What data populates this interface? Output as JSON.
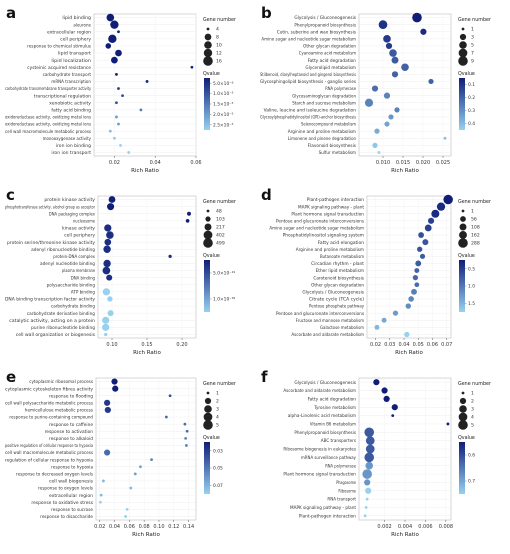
{
  "chart_data": [
    {
      "panel": "a",
      "type": "scatter",
      "xlabel": "Rich Ratio",
      "xlim": [
        0.01,
        0.06
      ],
      "xticks": [
        0.02,
        0.04,
        0.06
      ],
      "categories": [
        "lipid binding",
        "aleurone",
        "extracellular region",
        "cell periphery",
        "response to chemical stimulus",
        "lipid transport",
        "lipid localization",
        "cysteinic acquired resistance",
        "carbohydrate transport",
        "mRNA transcription",
        "carbohydrate transmembrane transporter activity",
        "transcriptional regulation",
        "xenobiotic activity",
        "fatty acid binding",
        "oxidoreductase activity, oxidizing metal ions",
        "oxidoreductase activity, oxidizing metal ions",
        "cell wall macromolecule metabolic process",
        "monooxygenase activity",
        "iron ion binding",
        "iron ion transport"
      ],
      "x": [
        0.018,
        0.02,
        0.022,
        0.019,
        0.017,
        0.022,
        0.02,
        0.058,
        0.021,
        0.036,
        0.022,
        0.024,
        0.021,
        0.033,
        0.021,
        0.022,
        0.018,
        0.02,
        0.023,
        0.027
      ],
      "gene_number": [
        10,
        12,
        4,
        12,
        6,
        8,
        8,
        4,
        4,
        4,
        4,
        4,
        4,
        4,
        4,
        4,
        4,
        4,
        4,
        4
      ],
      "qvalue": [
        2e-06,
        2e-06,
        2e-06,
        2e-06,
        2e-06,
        2e-06,
        2e-06,
        3e-06,
        2e-06,
        3e-06,
        6e-06,
        8e-06,
        8e-06,
        1.4e-05,
        1.8e-05,
        1.8e-05,
        2.2e-05,
        2.4e-05,
        2.5e-05,
        2.5e-05
      ],
      "legend": {
        "size_title": "Gene number",
        "size_values": [
          4,
          8,
          10,
          12,
          16
        ],
        "color_title": "Qvalue",
        "color_labels": [
          "5.0×10⁻⁶",
          "1.0×10⁻⁵",
          "1.5×10⁻⁵",
          "2.0×10⁻⁵",
          "2.5×10⁻⁵"
        ]
      }
    },
    {
      "panel": "b",
      "type": "scatter",
      "xlabel": "Rich Ratio",
      "xlim": [
        0.004,
        0.027
      ],
      "xticks": [
        0.01,
        0.015,
        0.02,
        0.025
      ],
      "categories": [
        "Glycolysis / Gluconeogenesis",
        "Phenylpropanoid biosynthesis",
        "Cutin, suberine and wax biosynthesis",
        "Amino sugar and nucleotide sugar metabolism",
        "Other glycan degradation",
        "Cyanoamino acid metabolism",
        "Fatty acid degradation",
        "Glycerolipid metabolism",
        "Stilbenoid, diarylheptanoid and gingerol biosynthesis",
        "Glycosphingolipid biosynthesis - ganglio series",
        "RNA polymerase",
        "Glycosaminoglycan degradation",
        "Starch and sucrose metabolism",
        "Valine, leucine and isoleucine degradation",
        "Glycosylphosphatidylinositol (GPI)-anchor biosynthesis",
        "Selenocompound metabolism",
        "Arginine and proline metabolism",
        "Limonene and pinene degradation",
        "Flavonoid biosynthesis",
        "Sulfur metabolism"
      ],
      "x": [
        0.0185,
        0.01,
        0.0201,
        0.011,
        0.0115,
        0.0125,
        0.013,
        0.0155,
        0.013,
        0.022,
        0.008,
        0.011,
        0.0065,
        0.0135,
        0.012,
        0.011,
        0.0085,
        0.0255,
        0.008,
        0.009
      ],
      "gene_number": [
        9,
        7,
        3,
        5,
        3,
        5,
        4,
        5,
        3,
        2,
        3,
        3,
        6,
        2,
        2,
        2,
        2,
        1,
        2,
        1
      ],
      "qvalue": [
        0.05,
        0.1,
        0.08,
        0.12,
        0.12,
        0.2,
        0.2,
        0.22,
        0.22,
        0.22,
        0.25,
        0.3,
        0.3,
        0.3,
        0.35,
        0.38,
        0.4,
        0.44,
        0.47,
        0.5
      ],
      "legend": {
        "size_title": "Gene number",
        "size_values": [
          1,
          3,
          5,
          7,
          9
        ],
        "color_title": "Qvalue",
        "color_labels": [
          "0.1",
          "0.2",
          "0.3",
          "0.4"
        ]
      }
    },
    {
      "panel": "c",
      "type": "scatter",
      "xlabel": "Rich Ratio",
      "xlim": [
        0.08,
        0.22
      ],
      "xticks": [
        0.1,
        0.15,
        0.2
      ],
      "categories": [
        "protein kinase activity",
        "phosphotransferase activity, alcohol group as acceptor",
        "DNA packaging complex",
        "nucleosome",
        "kinase activity",
        "cell periphery",
        "protein serine/threonine kinase activity",
        "adenyl ribonucleotide binding",
        "protein-DNA complex",
        "adenyl nucleotide binding",
        "plasma membrane",
        "DNA binding",
        "polysaccharide binding",
        "ATP binding",
        "DNA binding transcription factor activity",
        "carbohydrate binding",
        "carbohydrate derivative binding",
        "catalytic activity, acting on a protein",
        "purine ribonucleotide binding",
        "cell wall organization or biogenesis"
      ],
      "x": [
        0.1,
        0.098,
        0.21,
        0.208,
        0.094,
        0.097,
        0.094,
        0.093,
        0.183,
        0.093,
        0.092,
        0.096,
        0.161,
        0.092,
        0.097,
        0.118,
        0.098,
        0.091,
        0.091,
        0.091
      ],
      "gene_number": [
        200,
        230,
        60,
        55,
        240,
        270,
        190,
        255,
        50,
        255,
        285,
        150,
        40,
        245,
        110,
        45,
        150,
        230,
        245,
        50
      ],
      "qvalue": [
        1e-20,
        1e-20,
        1e-20,
        1e-20,
        1e-19,
        1e-19,
        1e-19,
        1e-19,
        1e-19,
        1e-19,
        1e-19,
        1e-19,
        1e-19,
        1e-18,
        1e-18,
        1e-18,
        1e-18,
        1e-18,
        1e-18,
        1e-18
      ],
      "legend": {
        "size_title": "Gene number",
        "size_values": [
          48,
          103,
          217,
          402,
          499
        ],
        "color_title": "Qvalue",
        "color_labels": [
          "5.0×10⁻¹⁹",
          "1.0×10⁻¹⁸"
        ]
      }
    },
    {
      "panel": "d",
      "type": "scatter",
      "xlabel": "Rich Ratio",
      "xlim": [
        0.014,
        0.073
      ],
      "xticks": [
        0.02,
        0.03,
        0.04,
        0.05,
        0.06,
        0.07
      ],
      "categories": [
        "Plant-pathogen interaction",
        "MAPK signaling pathway - plant",
        "Plant hormone signal transduction",
        "Pentose and glucuronate interconversions",
        "Amino sugar and nucleotide sugar metabolism",
        "Phosphatidylinositol signaling system",
        "Fatty acid elongation",
        "Arginine and proline metabolism",
        "Butanoate metabolism",
        "Circadian rhythm - plant",
        "Ether lipid metabolism",
        "Carotenoid biosynthesis",
        "Other glycan degradation",
        "Glycolysis / Gluconeogenesis",
        "Citrate cycle (TCA cycle)",
        "Pentose phosphate pathway",
        "Pentose and glucuronate interconversions",
        "Fructose and mannose metabolism",
        "Galactose metabolism",
        "Ascorbate and aldarate metabolism"
      ],
      "x": [
        0.071,
        0.066,
        0.062,
        0.059,
        0.057,
        0.052,
        0.055,
        0.051,
        0.053,
        0.05,
        0.049,
        0.048,
        0.049,
        0.047,
        0.045,
        0.043,
        0.034,
        0.026,
        0.021,
        0.042
      ],
      "gene_number": [
        280,
        190,
        170,
        70,
        100,
        55,
        65,
        40,
        35,
        60,
        30,
        40,
        25,
        60,
        50,
        45,
        40,
        30,
        28,
        40
      ],
      "qvalue": [
        0.2,
        0.3,
        0.3,
        0.45,
        0.45,
        0.55,
        0.6,
        0.6,
        0.65,
        0.65,
        0.7,
        0.72,
        0.75,
        0.9,
        0.95,
        1.0,
        1.1,
        1.2,
        1.3,
        1.5
      ],
      "legend": {
        "size_title": "Gene number",
        "size_values": [
          1,
          56,
          108,
          162,
          288
        ],
        "color_title": "Qvalue",
        "color_labels": [
          "0.5",
          "1.0",
          "1.5"
        ]
      }
    },
    {
      "panel": "e",
      "type": "scatter",
      "xlabel": "Rich Ratio",
      "xlim": [
        0.015,
        0.15
      ],
      "xticks": [
        0.02,
        0.04,
        0.06,
        0.08,
        0.1,
        0.12,
        0.14
      ],
      "categories": [
        "cytoplasmic ribosomal process",
        "cytoplasmic cytoskeleton fibres activity",
        "response to flooding",
        "cell wall polysaccharide metabolic process",
        "hemicellulose metabolic process",
        "response to purine-containing compound",
        "response to caffeine",
        "response to activation",
        "response to alkaloid",
        "positive regulation of cellular response to hypoxia",
        "cell wall macromolecule metabolic process",
        "regulation of cellular response to hypoxia",
        "response to hypoxia",
        "response to decreased oxygen levels",
        "cell wall biogenesis",
        "response to oxygen levels",
        "extracellular region",
        "response to oxidative stress",
        "response to sucrose",
        "response to disaccharide"
      ],
      "x": [
        0.04,
        0.041,
        0.115,
        0.03,
        0.031,
        0.11,
        0.135,
        0.138,
        0.136,
        0.137,
        0.03,
        0.09,
        0.075,
        0.068,
        0.025,
        0.062,
        0.022,
        0.021,
        0.057,
        0.055
      ],
      "gene_number": [
        2,
        2,
        1,
        2,
        2,
        1,
        1,
        1,
        1,
        1,
        2,
        1,
        1,
        1,
        1,
        1,
        1,
        1,
        1,
        1
      ],
      "qvalue": [
        0.02,
        0.02,
        0.04,
        0.03,
        0.03,
        0.05,
        0.05,
        0.05,
        0.06,
        0.06,
        0.05,
        0.06,
        0.07,
        0.07,
        0.08,
        0.08,
        0.08,
        0.09,
        0.09,
        0.09
      ],
      "legend": {
        "size_title": "Gene number",
        "size_values": [
          1,
          2,
          3,
          4,
          5
        ],
        "color_title": "Qvalue",
        "color_labels": [
          "0.03",
          "0.05",
          "0.07"
        ]
      }
    },
    {
      "panel": "f",
      "type": "scatter",
      "xlabel": "Rich Ratio",
      "xlim": [
        -0.0005,
        0.0085
      ],
      "xticks": [
        0.002,
        0.004,
        0.006,
        0.008
      ],
      "categories": [
        "Glycolysis / Gluconeogenesis",
        "Ascorbate and aldarate metabolism",
        "Fatty acid degradation",
        "Tyrosine metabolism",
        "alpha-Linolenic acid metabolism",
        "Vitamin B6 metabolism",
        "Phenylpropanoid biosynthesis",
        "ABC transporters",
        "Ribosome biogenesis in eukaryotes",
        "mRNA surveillance pathway",
        "RNA polymerase",
        "Plant hormone signal transduction",
        "Phagosome",
        "Ribosome",
        "RNA transport",
        "MAPK signaling pathway - plant",
        "Plant-pathogen interaction"
      ],
      "x": [
        0.0012,
        0.002,
        0.0022,
        0.003,
        0.0028,
        0.0082,
        0.0005,
        0.0006,
        0.0006,
        0.0005,
        0.0005,
        0.0003,
        0.0003,
        0.0004,
        0.0003,
        0.0002,
        0.0001
      ],
      "gene_number": [
        2,
        2,
        2,
        2,
        1,
        1,
        5,
        4,
        4,
        5,
        3,
        5,
        2,
        2,
        1,
        1,
        1
      ],
      "qvalue": [
        0.6,
        0.6,
        0.6,
        0.6,
        0.6,
        0.6,
        0.65,
        0.65,
        0.65,
        0.65,
        0.7,
        0.7,
        0.7,
        0.75,
        0.75,
        0.75,
        0.75
      ],
      "legend": {
        "size_title": "Gene number",
        "size_values": [
          1,
          2,
          3,
          4,
          5
        ],
        "color_title": "Qvalue",
        "color_labels": [
          "0.6",
          "0.7"
        ]
      }
    }
  ]
}
